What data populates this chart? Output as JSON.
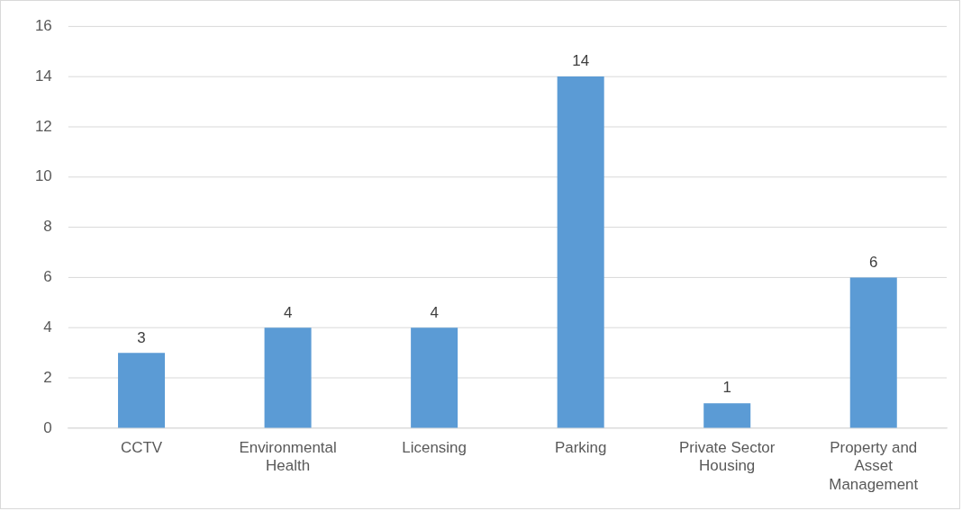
{
  "chart_data": {
    "type": "bar",
    "categories": [
      "CCTV",
      "Environmental Health",
      "Licensing",
      "Parking",
      "Private Sector Housing",
      "Property and Asset Management"
    ],
    "values": [
      3,
      4,
      4,
      14,
      1,
      6
    ],
    "color": "#5b9bd5",
    "ylim": [
      0,
      16
    ],
    "yticks": [
      0,
      2,
      4,
      6,
      8,
      10,
      12,
      14,
      16
    ],
    "grid": "y",
    "data_labels": true,
    "legend": false
  }
}
